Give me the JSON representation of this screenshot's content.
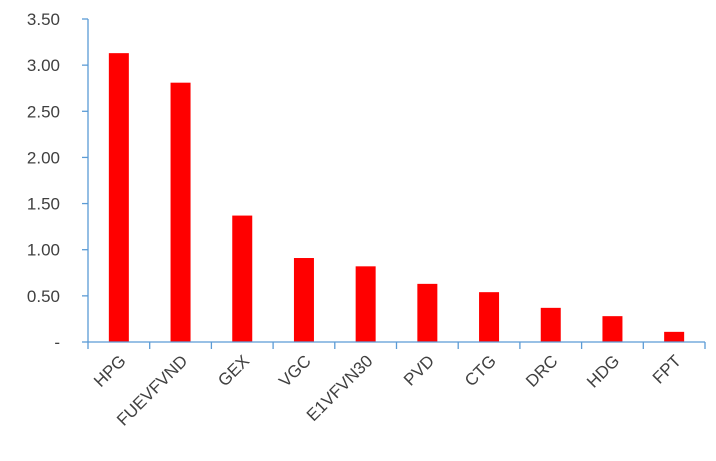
{
  "chart_data": {
    "type": "bar",
    "title": "",
    "xlabel": "",
    "ylabel": "",
    "categories": [
      "HPG",
      "FUEVFVND",
      "GEX",
      "VGC",
      "E1VFVN30",
      "PVD",
      "CTG",
      "DRC",
      "HDG",
      "FPT"
    ],
    "values": [
      3.13,
      2.81,
      1.37,
      0.91,
      0.82,
      0.63,
      0.54,
      0.37,
      0.28,
      0.11
    ],
    "ylim": [
      0,
      3.5
    ],
    "yticks": [
      0,
      0.5,
      1.0,
      1.5,
      2.0,
      2.5,
      3.0,
      3.5
    ],
    "ytick_labels": [
      "-",
      "0.50",
      "1.00",
      "1.50",
      "2.00",
      "2.50",
      "3.00",
      "3.50"
    ],
    "bar_color": "#ff0000",
    "axis_color": "#5b9bd5",
    "grid": false,
    "legend": "none"
  }
}
